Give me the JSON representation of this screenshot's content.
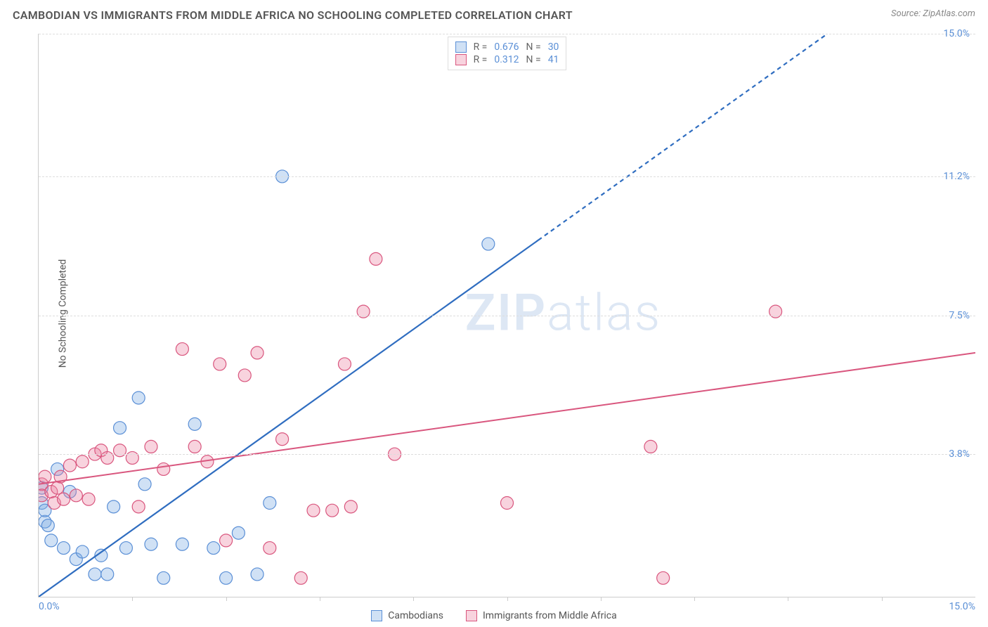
{
  "header": {
    "title": "CAMBODIAN VS IMMIGRANTS FROM MIDDLE AFRICA NO SCHOOLING COMPLETED CORRELATION CHART",
    "source": "Source: ZipAtlas.com"
  },
  "watermark": {
    "prefix": "ZIP",
    "suffix": "atlas"
  },
  "chart": {
    "type": "scatter-with-regression",
    "xlim": [
      0,
      15
    ],
    "ylim": [
      0,
      15
    ],
    "x_unit": "%",
    "y_unit": "%",
    "y_axis_label": "No Schooling Completed",
    "background_color": "#ffffff",
    "grid_color": "#dddddd",
    "axis_color": "#cccccc",
    "y_ticks": [
      {
        "value": 3.8,
        "label": "3.8%"
      },
      {
        "value": 7.5,
        "label": "7.5%"
      },
      {
        "value": 11.2,
        "label": "11.2%"
      },
      {
        "value": 15.0,
        "label": "15.0%"
      }
    ],
    "x_ticks_minor": [
      1.5,
      3.0,
      4.5,
      6.0,
      7.5,
      9.0,
      10.5,
      12.0,
      13.5
    ],
    "x_labels": [
      {
        "value": 0,
        "label": "0.0%"
      },
      {
        "value": 15,
        "label": "15.0%"
      }
    ],
    "marker_radius": 9,
    "marker_stroke_width": 1.2,
    "series": [
      {
        "id": "cambodians",
        "name": "Cambodians",
        "fill_color": "rgba(120,170,225,0.35)",
        "stroke_color": "#5a8fd6",
        "regression": {
          "r": "0.676",
          "n": "30",
          "x1": 0,
          "y1": 0.0,
          "x2": 8.0,
          "y2": 9.5,
          "extend_to_x": 12.6,
          "color": "#2f6dc0",
          "width": 2.2,
          "dash_extend": "6,5"
        },
        "points": [
          {
            "x": 0.05,
            "y": 2.9
          },
          {
            "x": 0.05,
            "y": 2.5
          },
          {
            "x": 0.1,
            "y": 2.0
          },
          {
            "x": 0.1,
            "y": 2.3
          },
          {
            "x": 0.15,
            "y": 1.9
          },
          {
            "x": 0.2,
            "y": 1.5
          },
          {
            "x": 0.3,
            "y": 3.4
          },
          {
            "x": 0.4,
            "y": 1.3
          },
          {
            "x": 0.5,
            "y": 2.8
          },
          {
            "x": 0.6,
            "y": 1.0
          },
          {
            "x": 0.7,
            "y": 1.2
          },
          {
            "x": 0.9,
            "y": 0.6
          },
          {
            "x": 1.0,
            "y": 1.1
          },
          {
            "x": 1.1,
            "y": 0.6
          },
          {
            "x": 1.2,
            "y": 2.4
          },
          {
            "x": 1.3,
            "y": 4.5
          },
          {
            "x": 1.4,
            "y": 1.3
          },
          {
            "x": 1.6,
            "y": 5.3
          },
          {
            "x": 1.7,
            "y": 3.0
          },
          {
            "x": 1.8,
            "y": 1.4
          },
          {
            "x": 2.0,
            "y": 0.5
          },
          {
            "x": 2.3,
            "y": 1.4
          },
          {
            "x": 2.5,
            "y": 4.6
          },
          {
            "x": 2.8,
            "y": 1.3
          },
          {
            "x": 3.0,
            "y": 0.5
          },
          {
            "x": 3.2,
            "y": 1.7
          },
          {
            "x": 3.5,
            "y": 0.6
          },
          {
            "x": 3.9,
            "y": 11.2
          },
          {
            "x": 7.2,
            "y": 9.4
          },
          {
            "x": 3.7,
            "y": 2.5
          }
        ]
      },
      {
        "id": "middle-africa",
        "name": "Immigrants from Middle Africa",
        "fill_color": "rgba(235,130,160,0.35)",
        "stroke_color": "#d9567e",
        "regression": {
          "r": "0.312",
          "n": "41",
          "x1": 0,
          "y1": 3.0,
          "x2": 15,
          "y2": 6.5,
          "extend_to_x": 15,
          "color": "#d9567e",
          "width": 2.0,
          "dash_extend": null
        },
        "points": [
          {
            "x": 0.05,
            "y": 3.0
          },
          {
            "x": 0.05,
            "y": 2.7
          },
          {
            "x": 0.1,
            "y": 3.2
          },
          {
            "x": 0.2,
            "y": 2.8
          },
          {
            "x": 0.25,
            "y": 2.5
          },
          {
            "x": 0.3,
            "y": 2.9
          },
          {
            "x": 0.35,
            "y": 3.2
          },
          {
            "x": 0.4,
            "y": 2.6
          },
          {
            "x": 0.5,
            "y": 3.5
          },
          {
            "x": 0.6,
            "y": 2.7
          },
          {
            "x": 0.7,
            "y": 3.6
          },
          {
            "x": 0.8,
            "y": 2.6
          },
          {
            "x": 0.9,
            "y": 3.8
          },
          {
            "x": 1.0,
            "y": 3.9
          },
          {
            "x": 1.1,
            "y": 3.7
          },
          {
            "x": 1.3,
            "y": 3.9
          },
          {
            "x": 1.5,
            "y": 3.7
          },
          {
            "x": 1.6,
            "y": 2.4
          },
          {
            "x": 1.8,
            "y": 4.0
          },
          {
            "x": 2.0,
            "y": 3.4
          },
          {
            "x": 2.3,
            "y": 6.6
          },
          {
            "x": 2.5,
            "y": 4.0
          },
          {
            "x": 2.7,
            "y": 3.6
          },
          {
            "x": 2.9,
            "y": 6.2
          },
          {
            "x": 3.0,
            "y": 1.5
          },
          {
            "x": 3.3,
            "y": 5.9
          },
          {
            "x": 3.5,
            "y": 6.5
          },
          {
            "x": 3.7,
            "y": 1.3
          },
          {
            "x": 3.9,
            "y": 4.2
          },
          {
            "x": 4.2,
            "y": 0.5
          },
          {
            "x": 4.4,
            "y": 2.3
          },
          {
            "x": 4.7,
            "y": 2.3
          },
          {
            "x": 4.9,
            "y": 6.2
          },
          {
            "x": 5.0,
            "y": 2.4
          },
          {
            "x": 5.2,
            "y": 7.6
          },
          {
            "x": 5.4,
            "y": 9.0
          },
          {
            "x": 7.5,
            "y": 2.5
          },
          {
            "x": 9.8,
            "y": 4.0
          },
          {
            "x": 10.0,
            "y": 0.5
          },
          {
            "x": 11.8,
            "y": 7.6
          },
          {
            "x": 5.7,
            "y": 3.8
          }
        ]
      }
    ],
    "top_legend": {
      "r_label": "R =",
      "n_label": "N ="
    },
    "bottom_legend": true
  }
}
